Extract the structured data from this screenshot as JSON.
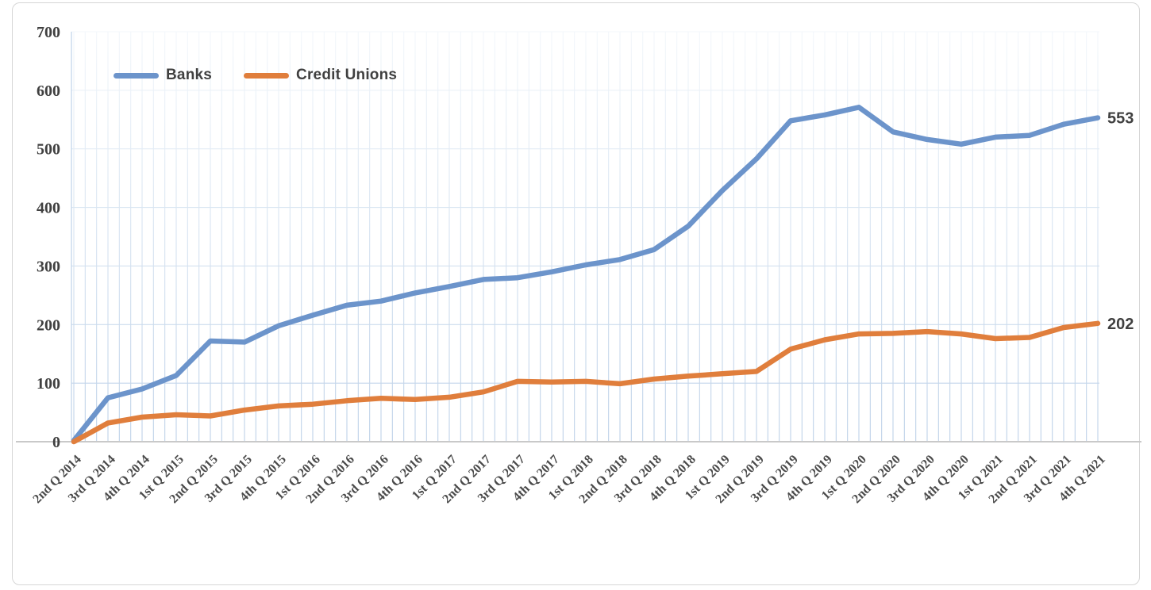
{
  "chart_data": {
    "type": "line",
    "title": "",
    "xlabel": "",
    "ylabel": "",
    "categories": [
      "2nd Q 2014",
      "3rd Q 2014",
      "4th Q 2014",
      "1st Q 2015",
      "2nd Q 2015",
      "3rd Q 2015",
      "4th Q 2015",
      "1st Q 2016",
      "2nd Q 2016",
      "3rd Q 2016",
      "4th Q 2016",
      "1st Q 2017",
      "2nd Q 2017",
      "3rd Q 2017",
      "4th Q 2017",
      "1st Q 2018",
      "2nd Q 2018",
      "3rd Q 2018",
      "4th Q 2018",
      "1st Q 2019",
      "2nd Q 2019",
      "3rd Q 2019",
      "4th Q 2019",
      "1st Q 2020",
      "2nd Q 2020",
      "3rd Q 2020",
      "4th Q 2020",
      "1st Q 2021",
      "2nd Q 2021",
      "3rd Q 2021",
      "4th Q 2021"
    ],
    "series": [
      {
        "name": "Banks",
        "color": "#6C94CB",
        "end_label": "553",
        "values": [
          2,
          75,
          90,
          113,
          172,
          170,
          198,
          216,
          233,
          240,
          254,
          265,
          277,
          280,
          290,
          302,
          311,
          328,
          368,
          429,
          483,
          548,
          558,
          571,
          529,
          516,
          508,
          520,
          523,
          542,
          553
        ]
      },
      {
        "name": "Credit Unions",
        "color": "#E07E3C",
        "end_label": "202",
        "values": [
          0,
          32,
          42,
          46,
          44,
          54,
          61,
          64,
          70,
          74,
          72,
          76,
          85,
          103,
          102,
          103,
          99,
          107,
          112,
          116,
          120,
          158,
          174,
          184,
          185,
          188,
          184,
          176,
          178,
          195,
          202
        ]
      }
    ],
    "ylim": [
      0,
      700
    ],
    "yticks": [
      0,
      100,
      200,
      300,
      400,
      500,
      600,
      700
    ],
    "grid": {
      "vertical_minor_per_category": 3,
      "horizontal": true,
      "fade_to_top": true
    },
    "legend_position": "inside-top-left",
    "colors": {
      "axis_text": "#404040",
      "tick_text": "#4a4a4a",
      "gridline_bottom": "#BDD1E8",
      "gridline_mid": "#DCE7F3",
      "gridline_top": "#F3F7FB",
      "baseline": "#C9C9C9"
    }
  },
  "legend": {
    "items": [
      {
        "label": "Banks"
      },
      {
        "label": "Credit Unions"
      }
    ]
  }
}
